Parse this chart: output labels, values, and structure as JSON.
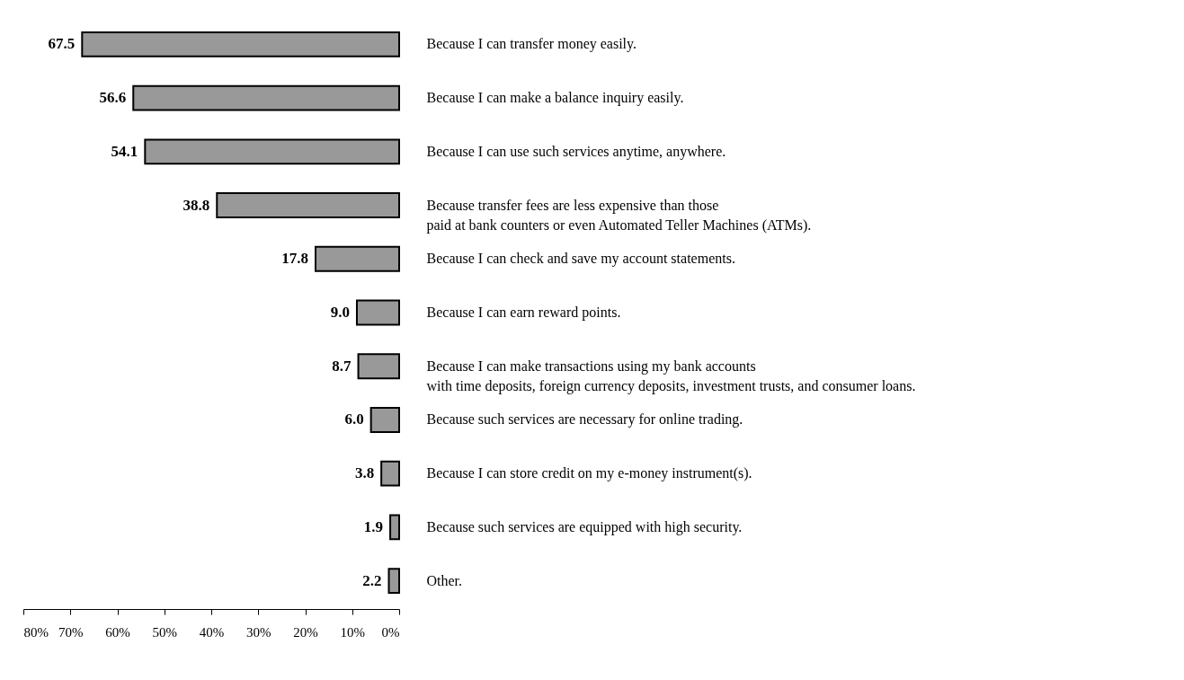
{
  "chart_data": {
    "type": "bar",
    "orientation": "horizontal",
    "categories": [
      "Because I can transfer money easily.",
      "Because I can make a balance inquiry easily.",
      "Because I can use such services anytime, anywhere.",
      "Because transfer fees are less expensive than those\npaid at  bank counters or even Automated Teller Machines (ATMs).",
      "Because I can check and save my account statements.",
      "Because I can earn reward points.",
      "Because I can make transactions using my bank accounts\nwith time deposits, foreign currency deposits, investment trusts, and consumer loans.",
      "Because such services are necessary for online trading.",
      "Because I can store credit on my e-money instrument(s).",
      "Because such services are equipped with high security.",
      "Other."
    ],
    "values": [
      67.5,
      56.6,
      54.1,
      38.8,
      17.8,
      9.0,
      8.7,
      6.0,
      3.8,
      1.9,
      2.2
    ],
    "value_labels": [
      "67.5",
      "56.6",
      "54.1",
      "38.8",
      "17.8",
      "9.0",
      "8.7",
      "6.0",
      "3.8",
      "1.9",
      "2.2"
    ],
    "color": "#999999",
    "xlim": [
      80,
      0
    ],
    "xticks": [
      {
        "value": 80,
        "label": "80%"
      },
      {
        "value": 70,
        "label": "70%"
      },
      {
        "value": 60,
        "label": "60%"
      },
      {
        "value": 50,
        "label": "50%"
      },
      {
        "value": 40,
        "label": "40%"
      },
      {
        "value": 30,
        "label": "30%"
      },
      {
        "value": 20,
        "label": "20%"
      },
      {
        "value": 10,
        "label": "10%"
      },
      {
        "value": 0,
        "label": "0%"
      }
    ],
    "grid": false
  }
}
